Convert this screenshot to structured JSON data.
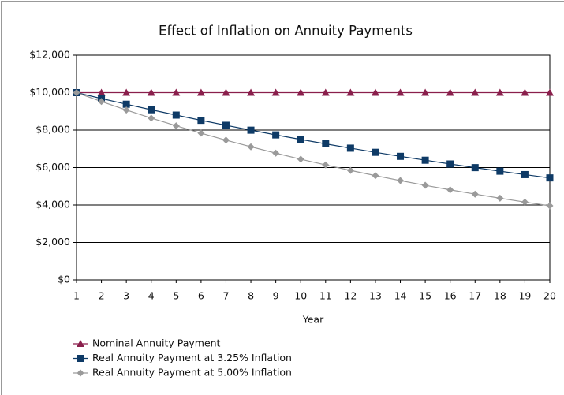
{
  "chart_data": {
    "type": "line",
    "title": "Effect of Inflation on Annuity Payments",
    "x_label": "Year",
    "x": [
      1,
      2,
      3,
      4,
      5,
      6,
      7,
      8,
      9,
      10,
      11,
      12,
      13,
      14,
      15,
      16,
      17,
      18,
      19,
      20
    ],
    "xlim": [
      1,
      20
    ],
    "xticks": [
      1,
      2,
      3,
      4,
      5,
      6,
      7,
      8,
      9,
      10,
      11,
      12,
      13,
      14,
      15,
      16,
      17,
      18,
      19,
      20
    ],
    "ylim": [
      0,
      12000
    ],
    "yticks": [
      {
        "value": 0,
        "label": "$0"
      },
      {
        "value": 2000,
        "label": "$2,000"
      },
      {
        "value": 4000,
        "label": "$4,000"
      },
      {
        "value": 6000,
        "label": "$6,000"
      },
      {
        "value": 8000,
        "label": "$8,000"
      },
      {
        "value": 10000,
        "label": "$10,000"
      },
      {
        "value": 12000,
        "label": "$12,000"
      }
    ],
    "grid": true,
    "legend": "bottom-left",
    "series": [
      {
        "name": "Nominal Annuity Payment",
        "color": "#8a1f4c",
        "marker": "triangle",
        "values": [
          10000,
          10000,
          10000,
          10000,
          10000,
          10000,
          10000,
          10000,
          10000,
          10000,
          10000,
          10000,
          10000,
          10000,
          10000,
          10000,
          10000,
          10000,
          10000,
          10000
        ]
      },
      {
        "name": "Real Annuity Payment at 3.25% Inflation",
        "color": "#0e3a66",
        "marker": "square",
        "values": [
          10000,
          9685,
          9380,
          9085,
          8799,
          8522,
          8254,
          7994,
          7742,
          7499,
          7263,
          7034,
          6813,
          6598,
          6391,
          6189,
          5995,
          5806,
          5623,
          5446
        ]
      },
      {
        "name": "Real Annuity Payment at 5.00% Inflation",
        "color": "#9a9a9a",
        "marker": "diamond",
        "values": [
          10000,
          9524,
          9070,
          8638,
          8227,
          7835,
          7462,
          7107,
          6768,
          6446,
          6139,
          5847,
          5568,
          5303,
          5051,
          4810,
          4581,
          4363,
          4155,
          3957
        ]
      }
    ]
  }
}
